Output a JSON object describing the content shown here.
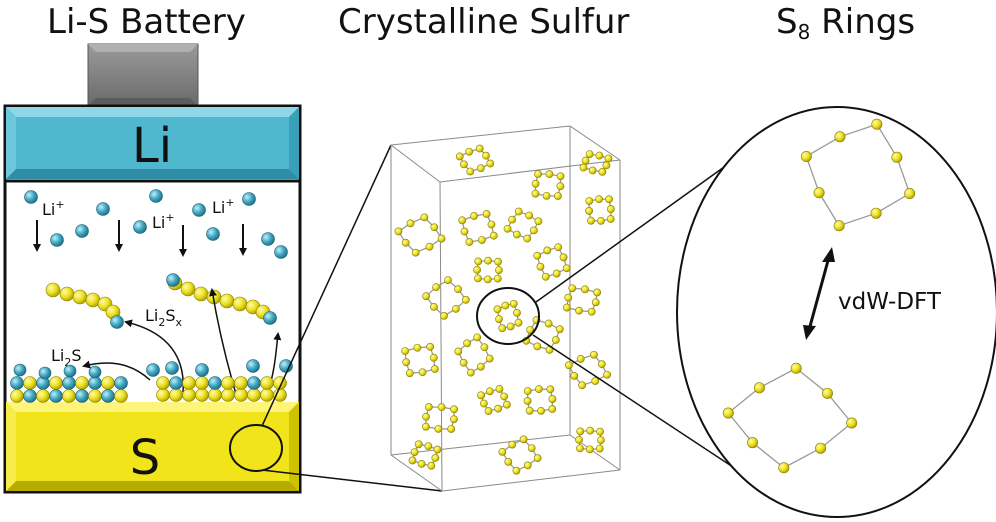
{
  "titles": {
    "battery": "Li-S Battery",
    "crystal": "Crystalline Sulfur",
    "rings_main": "S",
    "rings_sub": "8",
    "rings_rest": " Rings"
  },
  "battery": {
    "anode_label": "Li",
    "cathode_label": "S",
    "ion_label": "Li",
    "ion_charge": "+",
    "polysulfide_label_a": "Li",
    "polysulfide_label_b": "2",
    "polysulfide_label_c": "S",
    "polysulfide_label_d": "x",
    "sulfide_label_a": "Li",
    "sulfide_label_b": "2",
    "sulfide_label_c": "S"
  },
  "rings": {
    "method_label": "vdW-DFT"
  },
  "colors": {
    "lithium_bar": "#4fb8cf",
    "lithium_atom": "#3a9fb8",
    "sulfur": "#f2e41a",
    "sulfur_atom": "#e8dc1c",
    "terminal": "#777777",
    "bond": "#9a9a9a"
  }
}
